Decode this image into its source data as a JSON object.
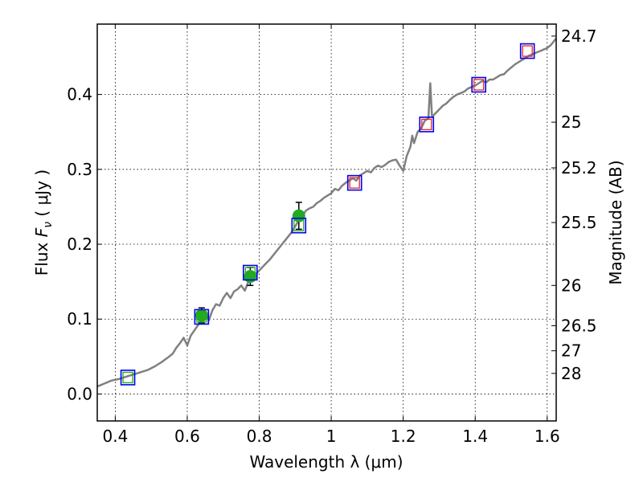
{
  "chart_data": {
    "type": "line",
    "xlabel": "Wavelength  λ (μm)",
    "ylabel": "Flux  F_ν  ( μJy )",
    "ylabel_parts": {
      "pre": "Flux  ",
      "sym": "F",
      "sub": "ν",
      "post": "  ( μJy )"
    },
    "y2label": "Magnitude (AB)",
    "xlim": [
      0.35,
      1.625
    ],
    "ylim": [
      -0.036,
      0.494
    ],
    "grid": true,
    "x_ticks": [
      {
        "value": 0.4,
        "label": "0.4"
      },
      {
        "value": 0.6,
        "label": "0.6"
      },
      {
        "value": 0.8,
        "label": "0.8"
      },
      {
        "value": 1.0,
        "label": "1"
      },
      {
        "value": 1.2,
        "label": "1.2"
      },
      {
        "value": 1.4,
        "label": "1.4"
      },
      {
        "value": 1.6,
        "label": "1.6"
      }
    ],
    "y_ticks": [
      {
        "value": 0.0,
        "label": "0.0"
      },
      {
        "value": 0.1,
        "label": "0.1"
      },
      {
        "value": 0.2,
        "label": "0.2"
      },
      {
        "value": 0.3,
        "label": "0.3"
      },
      {
        "value": 0.4,
        "label": "0.4"
      }
    ],
    "y2_ticks": [
      {
        "flux": 0.0275,
        "label": "28"
      },
      {
        "flux": 0.0577,
        "label": "27"
      },
      {
        "flux": 0.0912,
        "label": "26.5"
      },
      {
        "flux": 0.145,
        "label": "26"
      },
      {
        "flux": 0.229,
        "label": "25.5"
      },
      {
        "flux": 0.302,
        "label": "25.2"
      },
      {
        "flux": 0.363,
        "label": "25"
      },
      {
        "flux": 0.478,
        "label": "24.7"
      }
    ],
    "series": [
      {
        "style": "spectrum",
        "color": "#808080",
        "x": [
          0.35,
          0.37,
          0.39,
          0.41,
          0.43,
          0.45,
          0.47,
          0.49,
          0.51,
          0.53,
          0.55,
          0.56,
          0.57,
          0.58,
          0.59,
          0.6,
          0.61,
          0.62,
          0.63,
          0.64,
          0.65,
          0.66,
          0.67,
          0.68,
          0.69,
          0.7,
          0.71,
          0.72,
          0.73,
          0.74,
          0.75,
          0.76,
          0.77,
          0.78,
          0.79,
          0.8,
          0.81,
          0.82,
          0.83,
          0.84,
          0.85,
          0.86,
          0.87,
          0.88,
          0.89,
          0.9,
          0.91,
          0.92,
          0.93,
          0.94,
          0.95,
          0.96,
          0.97,
          0.98,
          0.99,
          1.0,
          1.01,
          1.02,
          1.03,
          1.04,
          1.05,
          1.06,
          1.07,
          1.08,
          1.09,
          1.1,
          1.11,
          1.12,
          1.13,
          1.14,
          1.15,
          1.16,
          1.17,
          1.18,
          1.19,
          1.2,
          1.21,
          1.22,
          1.225,
          1.23,
          1.24,
          1.25,
          1.26,
          1.27,
          1.275,
          1.28,
          1.29,
          1.3,
          1.31,
          1.32,
          1.33,
          1.34,
          1.35,
          1.36,
          1.37,
          1.38,
          1.39,
          1.4,
          1.41,
          1.42,
          1.43,
          1.44,
          1.45,
          1.46,
          1.47,
          1.48,
          1.49,
          1.5,
          1.51,
          1.52,
          1.53,
          1.54,
          1.55,
          1.56,
          1.57,
          1.58,
          1.59,
          1.6,
          1.61,
          1.625
        ],
        "y": [
          0.01,
          0.014,
          0.018,
          0.02,
          0.023,
          0.026,
          0.029,
          0.032,
          0.037,
          0.043,
          0.05,
          0.054,
          0.062,
          0.068,
          0.075,
          0.065,
          0.078,
          0.085,
          0.092,
          0.1,
          0.108,
          0.098,
          0.112,
          0.12,
          0.118,
          0.128,
          0.135,
          0.128,
          0.137,
          0.14,
          0.145,
          0.138,
          0.15,
          0.155,
          0.16,
          0.165,
          0.17,
          0.175,
          0.18,
          0.186,
          0.192,
          0.198,
          0.204,
          0.21,
          0.216,
          0.224,
          0.232,
          0.238,
          0.245,
          0.248,
          0.25,
          0.255,
          0.258,
          0.262,
          0.265,
          0.268,
          0.274,
          0.272,
          0.278,
          0.282,
          0.285,
          0.288,
          0.285,
          0.292,
          0.295,
          0.298,
          0.296,
          0.302,
          0.305,
          0.303,
          0.306,
          0.31,
          0.312,
          0.313,
          0.305,
          0.298,
          0.318,
          0.33,
          0.345,
          0.335,
          0.35,
          0.355,
          0.365,
          0.368,
          0.415,
          0.37,
          0.375,
          0.38,
          0.385,
          0.388,
          0.393,
          0.397,
          0.4,
          0.402,
          0.404,
          0.408,
          0.41,
          0.412,
          0.415,
          0.418,
          0.416,
          0.42,
          0.42,
          0.423,
          0.426,
          0.427,
          0.432,
          0.436,
          0.44,
          0.443,
          0.446,
          0.449,
          0.452,
          0.454,
          0.456,
          0.458,
          0.46,
          0.462,
          0.466,
          0.475
        ]
      },
      {
        "style": "measured-points",
        "color": "#22aa22",
        "x": [
          0.64,
          0.775,
          0.91
        ],
        "y": [
          0.105,
          0.157,
          0.238
        ],
        "yerr": [
          0.01,
          0.012,
          0.018
        ]
      },
      {
        "style": "model-photometry-squares",
        "color": "#0000ee",
        "x": [
          0.435,
          0.64,
          0.775,
          0.91,
          1.065,
          1.265,
          1.41,
          1.545
        ],
        "y": [
          0.022,
          0.103,
          0.162,
          0.225,
          0.282,
          0.36,
          0.413,
          0.458
        ]
      },
      {
        "style": "inner-squares",
        "colors": [
          "#22aa22",
          "#22aa22",
          "#22aa22",
          "#22aa22",
          "#ee2222",
          "#ee2222",
          "#ee2222",
          "#ee2222"
        ],
        "x": [
          0.435,
          0.64,
          0.775,
          0.91,
          1.065,
          1.265,
          1.41,
          1.545
        ],
        "y": [
          0.022,
          0.103,
          0.162,
          0.225,
          0.282,
          0.36,
          0.413,
          0.458
        ]
      }
    ]
  }
}
